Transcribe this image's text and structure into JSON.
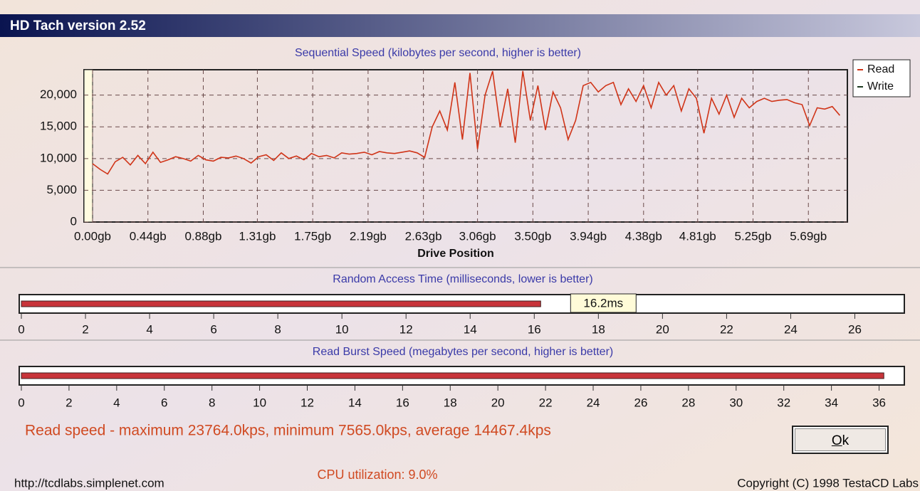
{
  "window": {
    "title": "HD Tach version 2.52"
  },
  "sequential_chart": {
    "type": "line",
    "title": "Sequential Speed (kilobytes per second, higher is better)",
    "x_label": "Drive Position",
    "xlim": [
      0,
      6.0
    ],
    "xticks": [
      {
        "value": 0,
        "label": "0.00gb"
      },
      {
        "value": 0.44,
        "label": "0.44gb"
      },
      {
        "value": 0.88,
        "label": "0.88gb"
      },
      {
        "value": 1.31,
        "label": "1.31gb"
      },
      {
        "value": 1.75,
        "label": "1.75gb"
      },
      {
        "value": 2.19,
        "label": "2.19gb"
      },
      {
        "value": 2.63,
        "label": "2.63gb"
      },
      {
        "value": 3.06,
        "label": "3.06gb"
      },
      {
        "value": 3.5,
        "label": "3.50gb"
      },
      {
        "value": 3.94,
        "label": "3.94gb"
      },
      {
        "value": 4.38,
        "label": "4.38gb"
      },
      {
        "value": 4.81,
        "label": "4.81gb"
      },
      {
        "value": 5.25,
        "label": "5.25gb"
      },
      {
        "value": 5.69,
        "label": "5.69gb"
      }
    ],
    "ylim": [
      0,
      24000
    ],
    "yticks": [
      0,
      {
        "value": 5000,
        "label": "5,000"
      },
      {
        "value": 10000,
        "label": "10,000"
      },
      {
        "value": 15000,
        "label": "15,000"
      },
      {
        "value": 20000,
        "label": "20,000"
      }
    ],
    "grid": true,
    "legend": [
      {
        "name": "Read",
        "color": "#d03418"
      },
      {
        "name": "Write",
        "color": "#1e3a22"
      }
    ],
    "x": [
      0,
      0.06,
      0.12,
      0.18,
      0.24,
      0.3,
      0.36,
      0.42,
      0.48,
      0.54,
      0.6,
      0.66,
      0.72,
      0.78,
      0.84,
      0.9,
      0.96,
      1.02,
      1.08,
      1.14,
      1.2,
      1.26,
      1.32,
      1.38,
      1.44,
      1.5,
      1.56,
      1.62,
      1.68,
      1.74,
      1.8,
      1.86,
      1.92,
      1.98,
      2.04,
      2.1,
      2.16,
      2.22,
      2.28,
      2.34,
      2.4,
      2.46,
      2.52,
      2.58,
      2.64,
      2.7,
      2.76,
      2.82,
      2.88,
      2.94,
      3,
      3.06,
      3.12,
      3.18,
      3.24,
      3.3,
      3.36,
      3.42,
      3.48,
      3.54,
      3.6,
      3.66,
      3.72,
      3.78,
      3.84,
      3.9,
      3.96,
      4.02,
      4.08,
      4.14,
      4.2,
      4.26,
      4.32,
      4.38,
      4.44,
      4.5,
      4.56,
      4.62,
      4.68,
      4.74,
      4.8,
      4.86,
      4.92,
      4.98,
      5.04,
      5.1,
      5.16,
      5.22,
      5.28,
      5.34,
      5.4,
      5.46,
      5.52,
      5.58,
      5.64,
      5.7,
      5.76,
      5.82,
      5.88,
      5.94
    ],
    "series": [
      {
        "name": "Read",
        "color": "#d03418",
        "values": [
          9200,
          8300,
          7565,
          9500,
          10200,
          9000,
          10500,
          9200,
          11000,
          9400,
          9800,
          10300,
          10000,
          9600,
          10500,
          9800,
          9600,
          10200,
          10100,
          10400,
          10000,
          9300,
          10300,
          10600,
          9700,
          10900,
          10000,
          10400,
          9800,
          10800,
          10300,
          10500,
          10100,
          10900,
          10700,
          10800,
          11000,
          10600,
          11100,
          10900,
          10800,
          11000,
          11200,
          10900,
          10200,
          15000,
          17500,
          14500,
          22000,
          13000,
          23500,
          11500,
          20000,
          23764,
          15000,
          21000,
          12500,
          23800,
          16000,
          21500,
          14500,
          20500,
          18000,
          13000,
          16000,
          21500,
          22000,
          20500,
          21500,
          22000,
          18500,
          21000,
          19000,
          21500,
          18000,
          22000,
          20000,
          21500,
          17500,
          21000,
          19500,
          14000,
          19500,
          17000,
          20000,
          16500,
          19500,
          18000,
          19000,
          19500,
          19000,
          19200,
          19300,
          18800,
          18500,
          15200,
          18000,
          17800,
          18200,
          16800
        ]
      }
    ]
  },
  "random_access": {
    "type": "bar",
    "title": "Random Access Time (milliseconds, lower is better)",
    "values": [
      16.2
    ],
    "value_labels": [
      "16.2ms"
    ],
    "color": "#c8343a",
    "xlim": [
      0,
      27.5
    ],
    "xticks": [
      0,
      2,
      4,
      6,
      8,
      10,
      12,
      14,
      16,
      18,
      20,
      22,
      24,
      26
    ]
  },
  "read_burst": {
    "type": "bar",
    "title": "Read Burst Speed (megabytes per second, higher is better)",
    "values": [
      36.2
    ],
    "color": "#c8343a",
    "xlim": [
      0,
      37
    ],
    "xticks": [
      0,
      2,
      4,
      6,
      8,
      10,
      12,
      14,
      16,
      18,
      20,
      22,
      24,
      26,
      28,
      30,
      32,
      34,
      36
    ]
  },
  "stats": "Read speed - maximum 23764.0kps, minimum 7565.0kps, average 14467.4kps",
  "cpu": "CPU utilization: 9.0%",
  "button": "Ok",
  "url": "http://tcdlabs.simplenet.com",
  "copyright": "Copyright (C) 1998 TestaCD Labs"
}
